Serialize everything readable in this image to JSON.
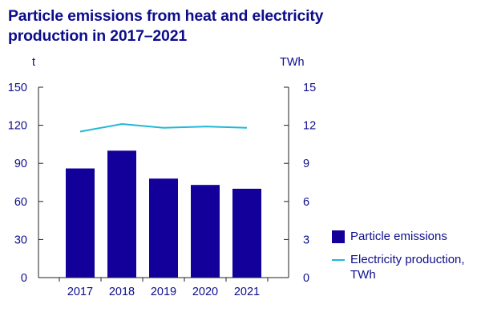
{
  "chart_data": {
    "type": "bar",
    "title": "Particle emissions from heat and electricity production in 2017–2021",
    "categories": [
      "2017",
      "2018",
      "2019",
      "2020",
      "2021"
    ],
    "left_axis": {
      "unit": "t",
      "ylim": [
        0,
        150
      ],
      "ticks": [
        "0",
        "30",
        "60",
        "90",
        "120",
        "150"
      ]
    },
    "right_axis": {
      "unit": "TWh",
      "ylim": [
        0,
        15
      ],
      "ticks": [
        "0",
        "3",
        "6",
        "9",
        "12",
        "15"
      ]
    },
    "series": [
      {
        "name": "Particle emissions",
        "type": "bar",
        "axis": "left",
        "values": [
          86,
          100,
          78,
          73,
          70
        ],
        "color": "#13009a"
      },
      {
        "name": "Electricity production, TWh",
        "type": "line",
        "axis": "right",
        "values": [
          11.5,
          12.1,
          11.8,
          11.9,
          11.8
        ],
        "color": "#1fb8d6"
      }
    ],
    "grid": false,
    "legend_position": "right"
  }
}
